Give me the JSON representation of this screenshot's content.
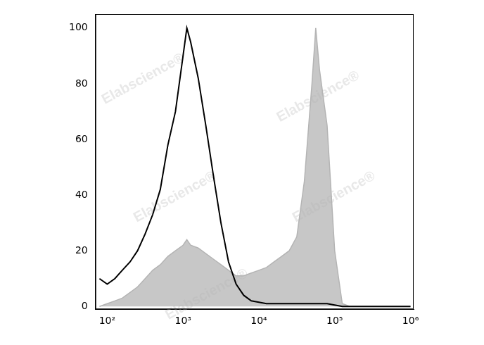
{
  "chart_data": {
    "type": "line",
    "annotations": [
      "Elabscience®"
    ],
    "log": "x",
    "grid": false,
    "x": [
      79,
      100,
      126,
      158,
      200,
      251,
      316,
      398,
      501,
      631,
      794,
      1000,
      1122,
      1259,
      1585,
      1995,
      2512,
      3162,
      3981,
      5012,
      6310,
      7943,
      10000,
      12589,
      15849,
      19953,
      25119,
      31623,
      39811,
      50119,
      56234,
      63096,
      79433,
      100000,
      125893,
      158489,
      251189,
      398107,
      630957,
      1000000
    ],
    "series": [
      {
        "type": "line",
        "color": "#000000",
        "marker": "none",
        "line_style": "solid",
        "values": [
          10,
          8,
          10,
          13,
          16,
          20,
          26,
          33,
          42,
          58,
          70,
          90,
          100,
          95,
          82,
          65,
          47,
          30,
          16,
          8,
          4,
          2,
          1.5,
          1,
          1,
          1,
          1,
          1,
          1,
          1,
          1,
          1,
          1,
          0.5,
          0,
          0,
          0,
          0,
          0,
          0
        ]
      },
      {
        "type": "area",
        "color": "#b4b4b4",
        "marker": "none",
        "line_style": "solid",
        "values": [
          0,
          1,
          2,
          3,
          5,
          7,
          10,
          13,
          15,
          18,
          20,
          22,
          24,
          22,
          21,
          19,
          17,
          15,
          13,
          11,
          11,
          12,
          13,
          14,
          16,
          18,
          20,
          25,
          45,
          80,
          100,
          85,
          65,
          20,
          1,
          0,
          0,
          0,
          0,
          0
        ]
      }
    ],
    "xlim": [
      70,
      1100000
    ],
    "xticks": [
      {
        "value": 100,
        "label": "10²"
      },
      {
        "value": 1000,
        "label": "10³"
      },
      {
        "value": 10000,
        "label": "10⁴"
      },
      {
        "value": 100000,
        "label": "10⁵"
      },
      {
        "value": 1000000,
        "label": "10⁶"
      }
    ],
    "ylim": [
      -1,
      105
    ],
    "yticks": [
      0,
      20,
      40,
      60,
      80,
      100
    ]
  }
}
